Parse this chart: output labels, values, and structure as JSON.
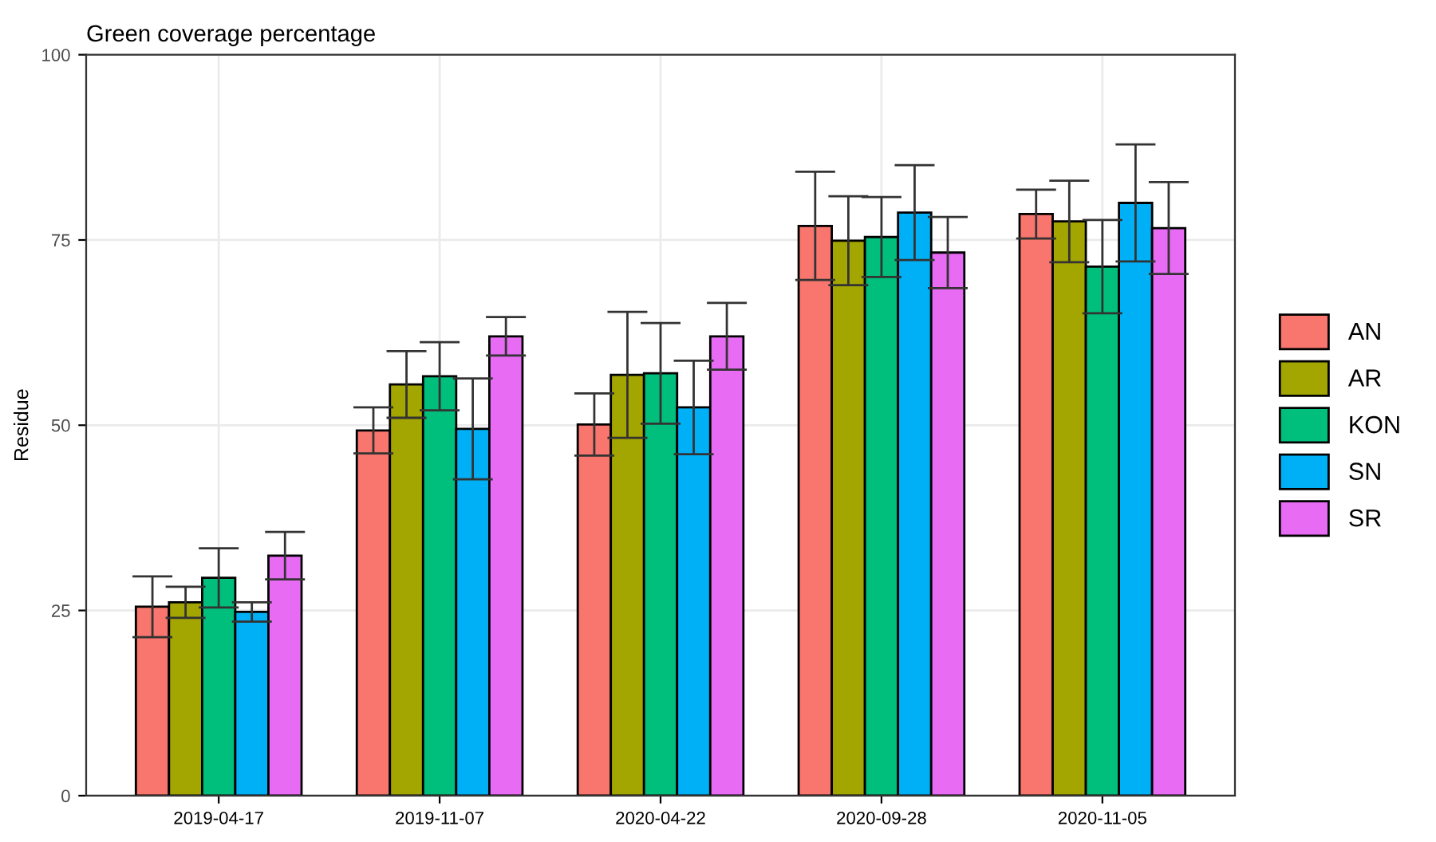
{
  "chart_data": {
    "type": "bar",
    "title": "Green coverage percentage",
    "ylabel": "Residue",
    "categories": [
      "2019-04-17",
      "2019-11-07",
      "2020-04-22",
      "2020-09-28",
      "2020-11-05"
    ],
    "series": [
      {
        "name": "AN",
        "color": "#f8766d",
        "values": [
          25.5,
          49.3,
          50.1,
          76.9,
          78.5
        ],
        "errors": [
          4.1,
          3.1,
          4.2,
          7.3,
          3.3
        ]
      },
      {
        "name": "AR",
        "color": "#a3a500",
        "values": [
          26.1,
          55.5,
          56.8,
          74.9,
          77.5
        ],
        "errors": [
          2.1,
          4.5,
          8.5,
          6.0,
          5.5
        ]
      },
      {
        "name": "KON",
        "color": "#00bf7d",
        "values": [
          29.4,
          56.6,
          57.0,
          75.4,
          71.4
        ],
        "errors": [
          4.0,
          4.6,
          6.8,
          5.4,
          6.3
        ]
      },
      {
        "name": "SN",
        "color": "#00b0f6",
        "values": [
          24.8,
          49.5,
          52.4,
          78.7,
          80.0
        ],
        "errors": [
          1.3,
          6.8,
          6.3,
          6.4,
          7.9
        ]
      },
      {
        "name": "SR",
        "color": "#e76bf3",
        "values": [
          32.4,
          62.0,
          62.0,
          73.3,
          76.6
        ],
        "errors": [
          3.2,
          2.6,
          4.5,
          4.8,
          6.2
        ]
      }
    ],
    "ylim": [
      0,
      100
    ],
    "yticks": [
      0,
      25,
      50,
      75,
      100
    ],
    "grid": true,
    "legend": "right"
  }
}
